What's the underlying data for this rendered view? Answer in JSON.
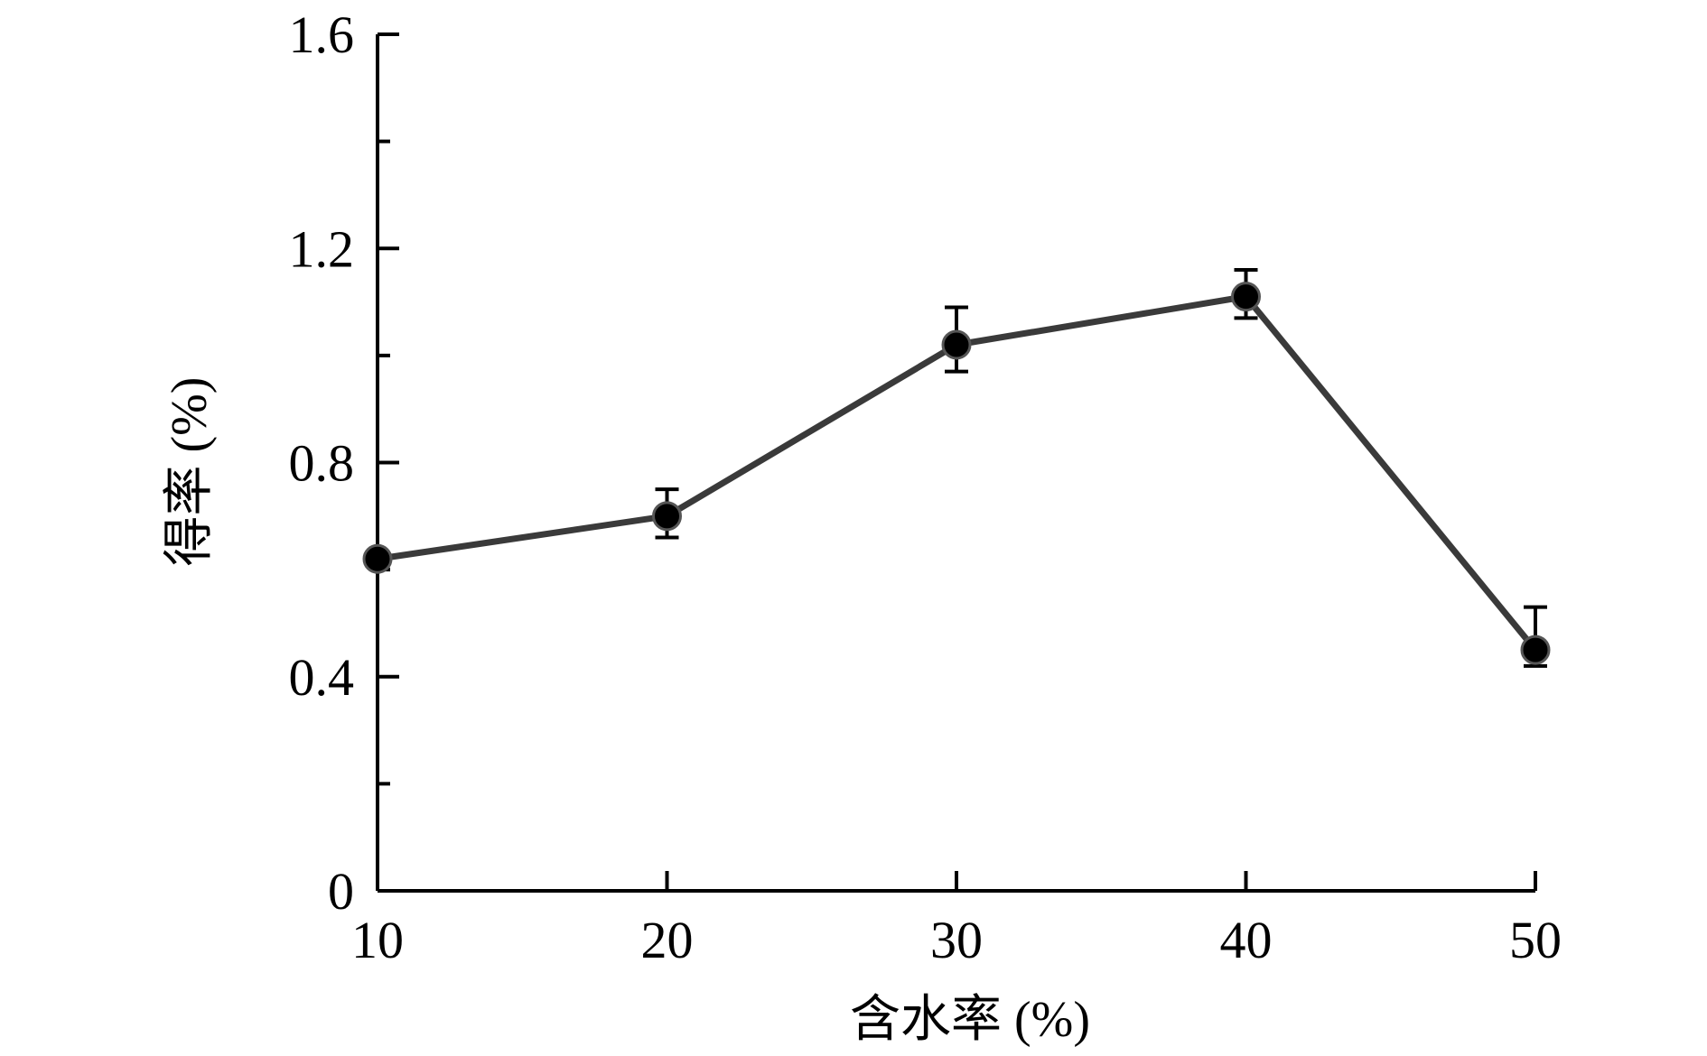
{
  "chart_data": {
    "type": "line",
    "title": "",
    "xlabel": "含水率 (%)",
    "ylabel": "得率 (%)",
    "x": [
      10,
      20,
      30,
      40,
      50
    ],
    "xlim": [
      10,
      50
    ],
    "ylim": [
      0,
      1.6
    ],
    "x_ticks": [
      "10",
      "20",
      "30",
      "40",
      "50"
    ],
    "y_ticks": [
      "0",
      "0.4",
      "0.8",
      "1.2",
      "1.6"
    ],
    "x_tick_values": [
      10,
      20,
      30,
      40,
      50
    ],
    "y_tick_values": [
      0,
      0.4,
      0.8,
      1.2,
      1.6
    ],
    "grid": false,
    "legend": "none",
    "series": [
      {
        "values": [
          0.62,
          0.7,
          1.02,
          1.11,
          0.45
        ],
        "error_upper": [
          0.62,
          0.75,
          1.09,
          1.16,
          0.53
        ],
        "error_lower": [
          0.62,
          0.66,
          0.97,
          1.07,
          0.42
        ],
        "color": "#3a3a3a",
        "marker": "filled-circle"
      }
    ]
  }
}
